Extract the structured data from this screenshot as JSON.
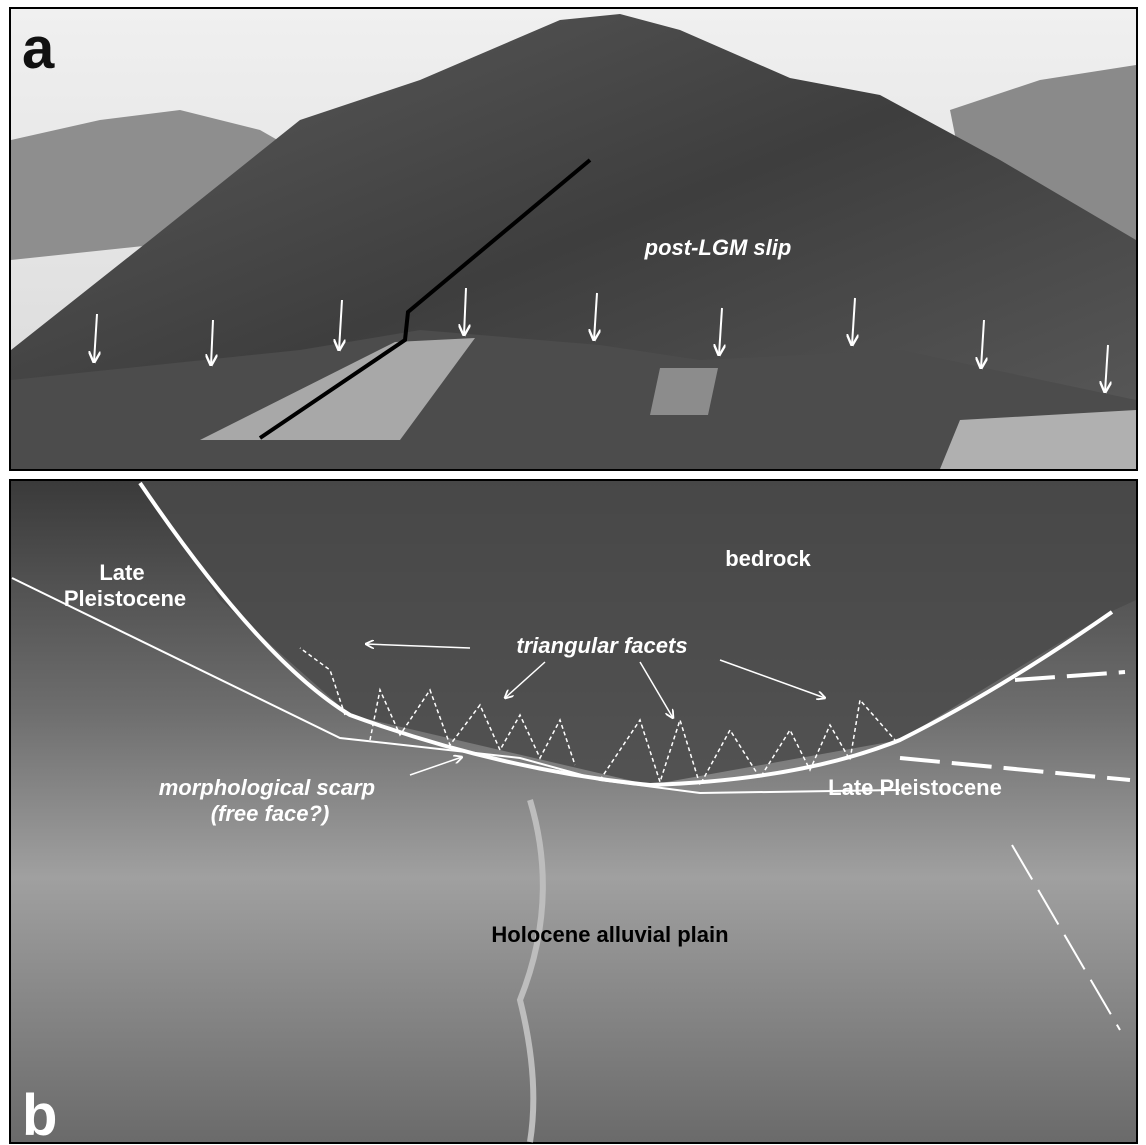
{
  "panels": [
    {
      "label": "a",
      "annotations": {
        "slip": "post-LGM slip"
      }
    },
    {
      "label": "b",
      "annotations": {
        "late_pleistocene_left": [
          "Late",
          "Pleistocene"
        ],
        "bedrock": "bedrock",
        "triangular_facets": "triangular facets",
        "scarp": [
          "morphological scarp",
          "(free face?)"
        ],
        "late_pleistocene_right": "Late Pleistocene",
        "plain": "Holocene alluvial plain"
      }
    }
  ]
}
